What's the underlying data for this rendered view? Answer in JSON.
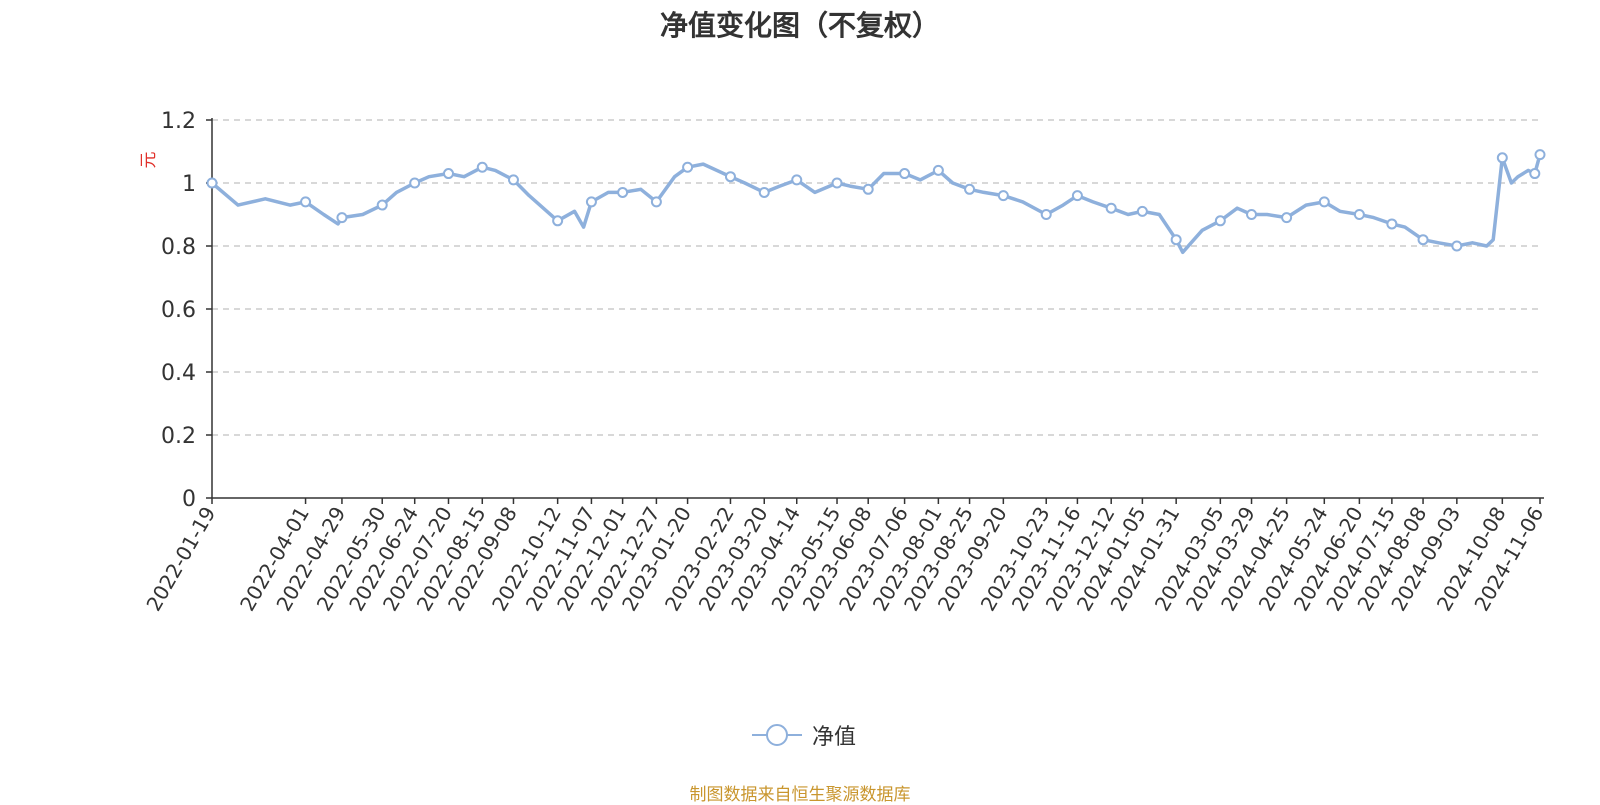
{
  "page": {
    "title": "净值变化图（不复权）",
    "source_note": "制图数据来自恒生聚源数据库"
  },
  "chart_data": {
    "type": "line",
    "title": "净值变化图（不复权）",
    "ylabel": "元",
    "xlabel": "",
    "ylim": [
      0,
      1.2
    ],
    "yticks": [
      "0",
      "0.2",
      "0.4",
      "0.6",
      "0.8",
      "1",
      "1.2"
    ],
    "grid": true,
    "legend_position": "bottom-center",
    "colors": {
      "line": "#8eb0dc",
      "ylabel": "#e0302a",
      "grid": "#cccccc",
      "axis": "#333333"
    },
    "x_ticks": [
      "2022-01-19",
      "2022-04-01",
      "2022-04-29",
      "2022-05-30",
      "2022-06-24",
      "2022-07-20",
      "2022-08-15",
      "2022-09-08",
      "2022-10-12",
      "2022-11-07",
      "2022-12-01",
      "2022-12-27",
      "2023-01-20",
      "2023-02-22",
      "2023-03-20",
      "2023-04-14",
      "2023-05-15",
      "2023-06-08",
      "2023-07-06",
      "2023-08-01",
      "2023-08-25",
      "2023-09-20",
      "2023-10-23",
      "2023-11-16",
      "2023-12-12",
      "2024-01-05",
      "2024-01-31",
      "2024-03-05",
      "2024-03-29",
      "2024-04-25",
      "2024-05-24",
      "2024-06-20",
      "2024-07-15",
      "2024-08-08",
      "2024-09-03",
      "2024-10-08",
      "2024-11-06"
    ],
    "series": [
      {
        "name": "净值",
        "x": [
          "2022-01-19",
          "2022-02-08",
          "2022-03-01",
          "2022-03-20",
          "2022-04-01",
          "2022-04-15",
          "2022-04-26",
          "2022-04-29",
          "2022-05-15",
          "2022-05-30",
          "2022-06-10",
          "2022-06-24",
          "2022-07-05",
          "2022-07-20",
          "2022-08-01",
          "2022-08-15",
          "2022-08-25",
          "2022-09-08",
          "2022-09-20",
          "2022-10-12",
          "2022-10-25",
          "2022-11-01",
          "2022-11-07",
          "2022-11-20",
          "2022-12-01",
          "2022-12-15",
          "2022-12-27",
          "2023-01-10",
          "2023-01-20",
          "2023-02-01",
          "2023-02-22",
          "2023-03-05",
          "2023-03-20",
          "2023-04-01",
          "2023-04-14",
          "2023-04-28",
          "2023-05-15",
          "2023-05-25",
          "2023-06-08",
          "2023-06-20",
          "2023-07-06",
          "2023-07-18",
          "2023-08-01",
          "2023-08-12",
          "2023-08-25",
          "2023-09-05",
          "2023-09-20",
          "2023-10-05",
          "2023-10-23",
          "2023-11-05",
          "2023-11-16",
          "2023-11-28",
          "2023-12-12",
          "2023-12-25",
          "2024-01-05",
          "2024-01-18",
          "2024-01-31",
          "2024-02-05",
          "2024-02-20",
          "2024-03-05",
          "2024-03-18",
          "2024-03-29",
          "2024-04-10",
          "2024-04-25",
          "2024-05-10",
          "2024-05-24",
          "2024-06-05",
          "2024-06-20",
          "2024-07-01",
          "2024-07-15",
          "2024-07-25",
          "2024-08-08",
          "2024-08-20",
          "2024-09-03",
          "2024-09-15",
          "2024-09-26",
          "2024-10-01",
          "2024-10-08",
          "2024-10-15",
          "2024-10-20",
          "2024-10-28",
          "2024-11-02",
          "2024-11-06"
        ],
        "values": [
          1.0,
          0.93,
          0.95,
          0.93,
          0.94,
          0.9,
          0.87,
          0.89,
          0.9,
          0.93,
          0.97,
          1.0,
          1.02,
          1.03,
          1.02,
          1.05,
          1.04,
          1.01,
          0.96,
          0.88,
          0.91,
          0.86,
          0.94,
          0.97,
          0.97,
          0.98,
          0.94,
          1.02,
          1.05,
          1.06,
          1.02,
          1.0,
          0.97,
          0.99,
          1.01,
          0.97,
          1.0,
          0.99,
          0.98,
          1.03,
          1.03,
          1.01,
          1.04,
          1.0,
          0.98,
          0.97,
          0.96,
          0.94,
          0.9,
          0.93,
          0.96,
          0.94,
          0.92,
          0.9,
          0.91,
          0.9,
          0.82,
          0.78,
          0.85,
          0.88,
          0.92,
          0.9,
          0.9,
          0.89,
          0.93,
          0.94,
          0.91,
          0.9,
          0.89,
          0.87,
          0.86,
          0.82,
          0.81,
          0.8,
          0.81,
          0.8,
          0.82,
          1.08,
          1.0,
          1.02,
          1.04,
          1.03,
          1.09
        ],
        "markers": [
          "2022-01-19",
          "2022-04-01",
          "2022-04-29",
          "2022-05-30",
          "2022-06-24",
          "2022-07-20",
          "2022-08-15",
          "2022-09-08",
          "2022-10-12",
          "2022-11-07",
          "2022-12-01",
          "2022-12-27",
          "2023-01-20",
          "2023-02-22",
          "2023-03-20",
          "2023-04-14",
          "2023-05-15",
          "2023-06-08",
          "2023-07-06",
          "2023-08-01",
          "2023-08-25",
          "2023-09-20",
          "2023-10-23",
          "2023-11-16",
          "2023-12-12",
          "2024-01-05",
          "2024-01-31",
          "2024-03-05",
          "2024-03-29",
          "2024-04-25",
          "2024-05-24",
          "2024-06-20",
          "2024-07-15",
          "2024-08-08",
          "2024-09-03",
          "2024-10-08",
          "2024-11-02",
          "2024-11-06"
        ]
      }
    ]
  }
}
